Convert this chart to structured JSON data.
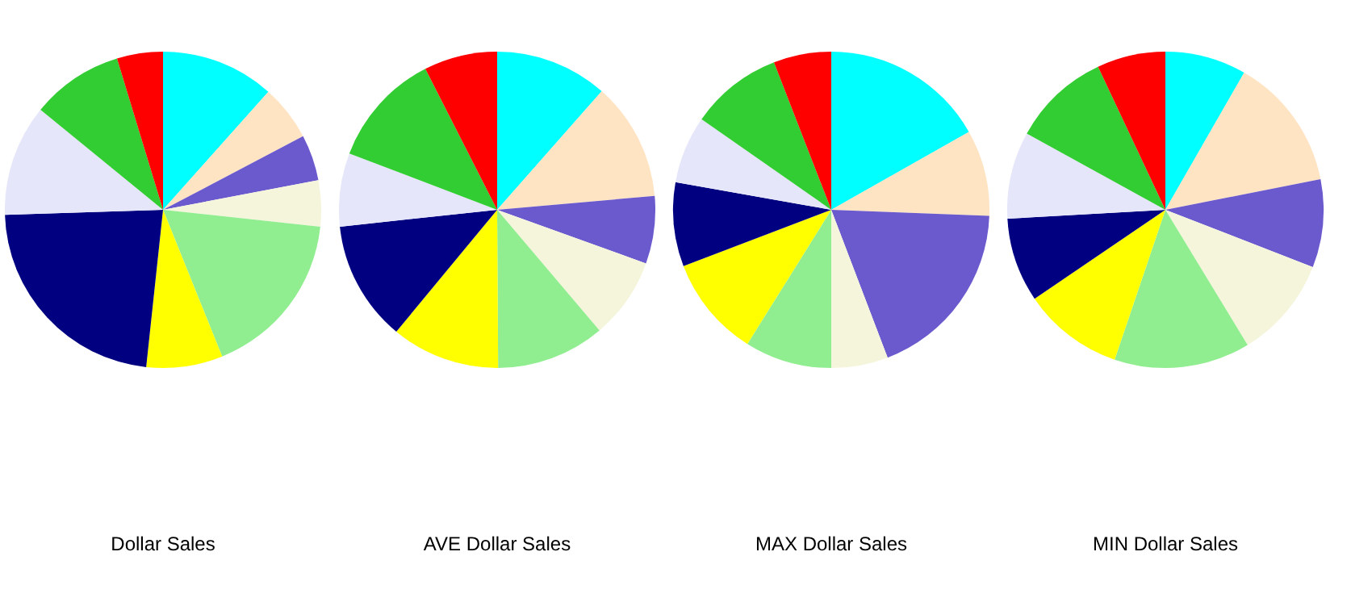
{
  "chart_data": [
    {
      "type": "pie",
      "title": "Dollar Sales",
      "categories": [
        null,
        null,
        null,
        null,
        null,
        null,
        null,
        null,
        null,
        null
      ],
      "values": [
        11.6,
        5.7,
        4.7,
        4.7,
        17.2,
        7.8,
        22.8,
        11.4,
        9.4,
        4.7
      ],
      "colors": [
        "#00ffff",
        "#ffe4c4",
        "#6a5acd",
        "#f5f5dc",
        "#90ee90",
        "#ffff00",
        "#000080",
        "#e6e6fa",
        "#32cd32",
        "#ff0000"
      ]
    },
    {
      "type": "pie",
      "title": "AVE Dollar Sales",
      "categories": [
        null,
        null,
        null,
        null,
        null,
        null,
        null,
        null,
        null,
        null
      ],
      "values": [
        11.5,
        12.1,
        6.9,
        8.3,
        11.1,
        11.1,
        12.3,
        7.5,
        11.7,
        7.5
      ],
      "colors": [
        "#00ffff",
        "#ffe4c4",
        "#6a5acd",
        "#f5f5dc",
        "#90ee90",
        "#ffff00",
        "#000080",
        "#e6e6fa",
        "#32cd32",
        "#ff0000"
      ]
    },
    {
      "type": "pie",
      "title": "MAX Dollar Sales",
      "categories": [
        null,
        null,
        null,
        null,
        null,
        null,
        null,
        null,
        null,
        null
      ],
      "values": [
        16.8,
        8.8,
        18.6,
        5.8,
        8.9,
        10.3,
        8.6,
        6.9,
        9.4,
        5.9
      ],
      "colors": [
        "#00ffff",
        "#ffe4c4",
        "#6a5acd",
        "#f5f5dc",
        "#90ee90",
        "#ffff00",
        "#000080",
        "#e6e6fa",
        "#32cd32",
        "#ff0000"
      ]
    },
    {
      "type": "pie",
      "title": "MIN Dollar Sales",
      "categories": [
        null,
        null,
        null,
        null,
        null,
        null,
        null,
        null,
        null,
        null
      ],
      "values": [
        8.3,
        13.6,
        9.0,
        10.4,
        13.9,
        10.3,
        8.6,
        8.9,
        10.0,
        7.0
      ],
      "colors": [
        "#00ffff",
        "#ffe4c4",
        "#6a5acd",
        "#f5f5dc",
        "#90ee90",
        "#ffff00",
        "#000080",
        "#e6e6fa",
        "#32cd32",
        "#ff0000"
      ]
    }
  ]
}
